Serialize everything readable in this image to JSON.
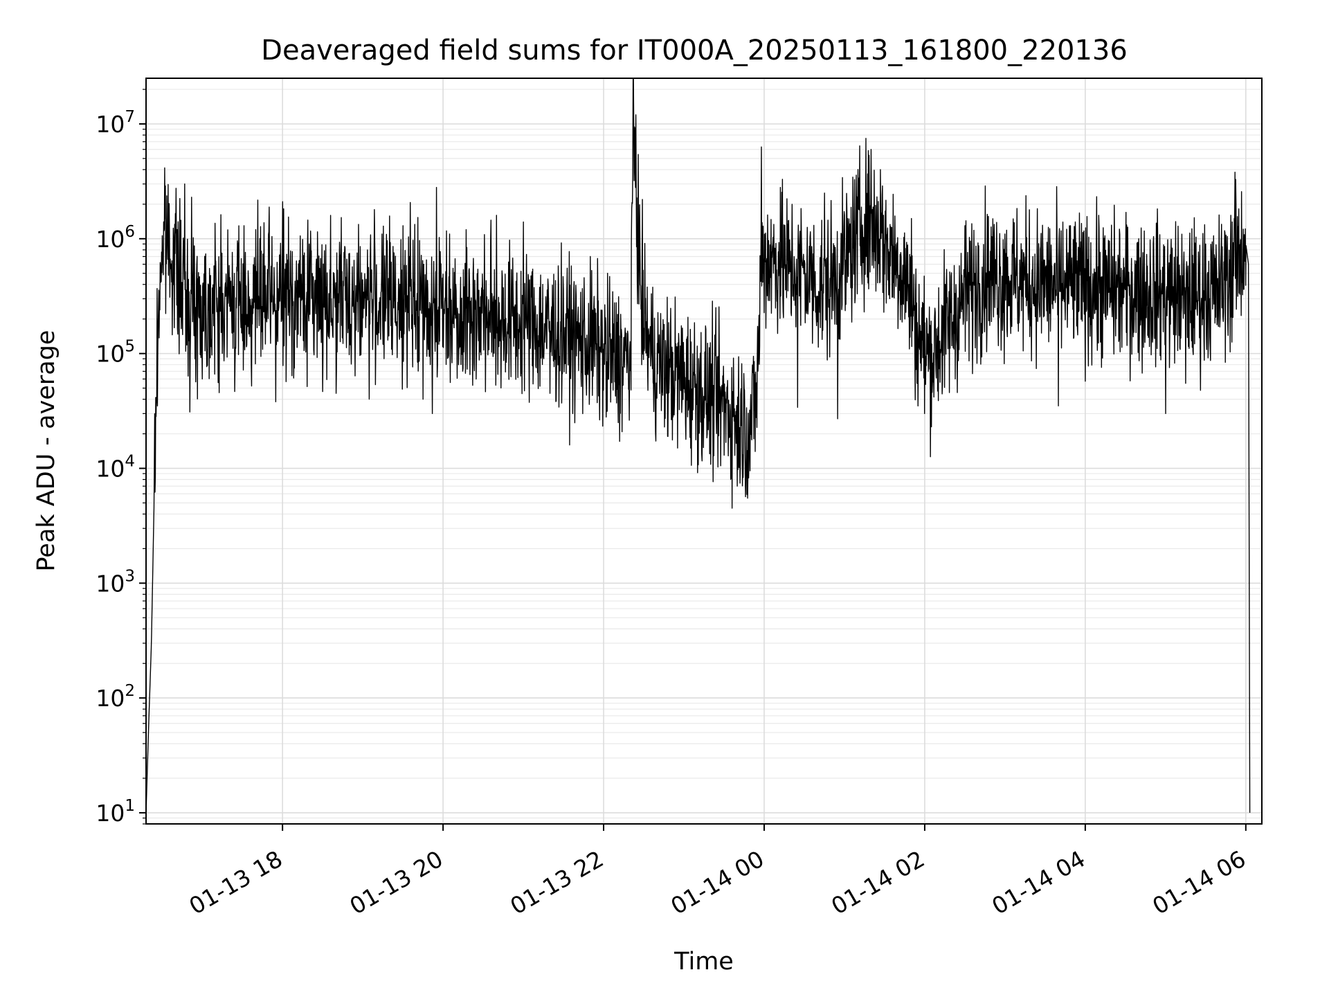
{
  "chart_data": {
    "type": "line",
    "title": "Deaveraged field sums for IT000A_20250113_161800_220136",
    "xlabel": "Time",
    "ylabel": "Peak ADU - average",
    "yscale": "log",
    "ylim": [
      8,
      25000000
    ],
    "xlim": [
      "2025-01-13 16:18",
      "2025-01-14 06:12"
    ],
    "grid": "major and minor",
    "line_color": "#000000",
    "x_ticks": [
      {
        "label": "01-13 18",
        "time": "2025-01-13 18:00"
      },
      {
        "label": "01-13 20",
        "time": "2025-01-13 20:00"
      },
      {
        "label": "01-13 22",
        "time": "2025-01-13 22:00"
      },
      {
        "label": "01-14 00",
        "time": "2025-01-14 00:00"
      },
      {
        "label": "01-14 02",
        "time": "2025-01-14 02:00"
      },
      {
        "label": "01-14 04",
        "time": "2025-01-14 04:00"
      },
      {
        "label": "01-14 06",
        "time": "2025-01-14 06:00"
      }
    ],
    "y_ticks": [
      {
        "base": "10",
        "exp": "1",
        "value": 10
      },
      {
        "base": "10",
        "exp": "2",
        "value": 100
      },
      {
        "base": "10",
        "exp": "3",
        "value": 1000
      },
      {
        "base": "10",
        "exp": "4",
        "value": 10000
      },
      {
        "base": "10",
        "exp": "5",
        "value": 100000
      },
      {
        "base": "10",
        "exp": "6",
        "value": 1000000
      },
      {
        "base": "10",
        "exp": "7",
        "value": 10000000
      }
    ],
    "series": [
      {
        "x": [
          "2025-01-13 16:18",
          "2025-01-13 16:20",
          "2025-01-13 16:22",
          "2025-01-13 16:24",
          "2025-01-13 16:26",
          "2025-01-13 16:28",
          "2025-01-13 16:30",
          "2025-01-13 16:32",
          "2025-01-13 16:34",
          "2025-01-13 16:36",
          "2025-01-13 16:40",
          "2025-01-13 16:45",
          "2025-01-13 16:50",
          "2025-01-13 16:55",
          "2025-01-13 17:00",
          "2025-01-13 17:15",
          "2025-01-13 17:30",
          "2025-01-13 17:45",
          "2025-01-13 18:00",
          "2025-01-13 18:30",
          "2025-01-13 19:00",
          "2025-01-13 19:30",
          "2025-01-13 20:00",
          "2025-01-13 20:30",
          "2025-01-13 21:00",
          "2025-01-13 21:30",
          "2025-01-13 21:50",
          "2025-01-13 22:20",
          "2025-01-13 22:22",
          "2025-01-13 22:24",
          "2025-01-13 22:26",
          "2025-01-13 22:28",
          "2025-01-13 22:32",
          "2025-01-13 22:36",
          "2025-01-13 22:40",
          "2025-01-13 22:50",
          "2025-01-13 23:00",
          "2025-01-13 23:15",
          "2025-01-13 23:30",
          "2025-01-13 23:38",
          "2025-01-13 23:44",
          "2025-01-13 23:48",
          "2025-01-13 23:52",
          "2025-01-13 23:55",
          "2025-01-13 23:58",
          "2025-01-14 00:15",
          "2025-01-14 00:30",
          "2025-01-14 00:45",
          "2025-01-14 01:00",
          "2025-01-14 01:15",
          "2025-01-14 01:20",
          "2025-01-14 01:30",
          "2025-01-14 01:45",
          "2025-01-14 01:55",
          "2025-01-14 02:05",
          "2025-01-14 02:15",
          "2025-01-14 02:30",
          "2025-01-14 02:45",
          "2025-01-14 03:00",
          "2025-01-14 03:30",
          "2025-01-14 04:00",
          "2025-01-14 04:30",
          "2025-01-14 05:00",
          "2025-01-14 05:30",
          "2025-01-14 05:40",
          "2025-01-14 05:50",
          "2025-01-14 05:55",
          "2025-01-14 06:00",
          "2025-01-14 06:02",
          "2025-01-14 06:03"
        ],
        "y": [
          10,
          60,
          300,
          5000,
          60000,
          400000,
          800000,
          1000000,
          950000,
          900000,
          600000,
          350000,
          280000,
          270000,
          260000,
          270000,
          280000,
          290000,
          300000,
          310000,
          300000,
          280000,
          260000,
          220000,
          180000,
          150000,
          120000,
          80000,
          9000000,
          3000000,
          1000000,
          300000,
          150000,
          100000,
          80000,
          70000,
          60000,
          45000,
          35000,
          30000,
          25000,
          20000,
          30000,
          60000,
          700000,
          600000,
          500000,
          350000,
          600000,
          1500000,
          1300000,
          900000,
          500000,
          150000,
          90000,
          160000,
          300000,
          500000,
          450000,
          400000,
          380000,
          350000,
          330000,
          320000,
          350000,
          550000,
          700000,
          900000,
          600000,
          10
        ],
        "noise": 0.32,
        "spikes": [
          [
            "2025-01-13 16:47",
            3000000
          ],
          [
            "2025-01-13 16:52",
            2300000
          ],
          [
            "2025-01-13 17:00",
            1400000
          ],
          [
            "2025-01-13 17:40",
            1200000
          ],
          [
            "2025-01-13 18:00",
            2100000
          ],
          [
            "2025-01-13 18:20",
            900000
          ],
          [
            "2025-01-13 19:30",
            1300000
          ],
          [
            "2025-01-13 19:55",
            2800000
          ],
          [
            "2025-01-13 20:05",
            1100000
          ],
          [
            "2025-01-13 20:40",
            1600000
          ],
          [
            "2025-01-13 21:00",
            1400000
          ],
          [
            "2025-01-13 21:50",
            700000
          ],
          [
            "2025-01-13 22:24",
            12000000
          ],
          [
            "2025-01-13 23:58",
            6300000
          ],
          [
            "2025-01-14 00:12",
            2800000
          ],
          [
            "2025-01-14 00:45",
            2500000
          ],
          [
            "2025-01-14 01:20",
            6000000
          ],
          [
            "2025-01-14 01:27",
            4000000
          ],
          [
            "2025-01-14 01:50",
            1500000
          ],
          [
            "2025-01-14 02:05",
            1300000
          ],
          [
            "2025-01-14 02:30",
            1300000
          ],
          [
            "2025-01-14 03:00",
            1100000
          ],
          [
            "2025-01-14 03:40",
            1100000
          ],
          [
            "2025-01-14 04:10",
            1600000
          ],
          [
            "2025-01-14 04:40",
            1000000
          ],
          [
            "2025-01-14 05:30",
            900000
          ],
          [
            "2025-01-14 05:52",
            3800000
          ]
        ],
        "dips": [
          [
            "2025-01-13 17:00",
            60000
          ],
          [
            "2025-01-13 17:55",
            38000
          ],
          [
            "2025-01-13 18:40",
            45000
          ],
          [
            "2025-01-13 19:45",
            40000
          ],
          [
            "2025-01-13 19:52",
            30000
          ],
          [
            "2025-01-13 21:20",
            45000
          ],
          [
            "2025-01-13 22:02",
            28000
          ],
          [
            "2025-01-13 23:05",
            15000
          ],
          [
            "2025-01-13 23:35",
            8000
          ],
          [
            "2025-01-13 23:40",
            7000
          ],
          [
            "2025-01-14 00:25",
            34000
          ],
          [
            "2025-01-14 00:55",
            27000
          ],
          [
            "2025-01-14 02:05",
            23000
          ],
          [
            "2025-01-14 02:00",
            30000
          ],
          [
            "2025-01-14 03:40",
            35000
          ],
          [
            "2025-01-14 05:00",
            30000
          ],
          [
            "2025-01-14 05:15",
            55000
          ]
        ]
      }
    ]
  }
}
